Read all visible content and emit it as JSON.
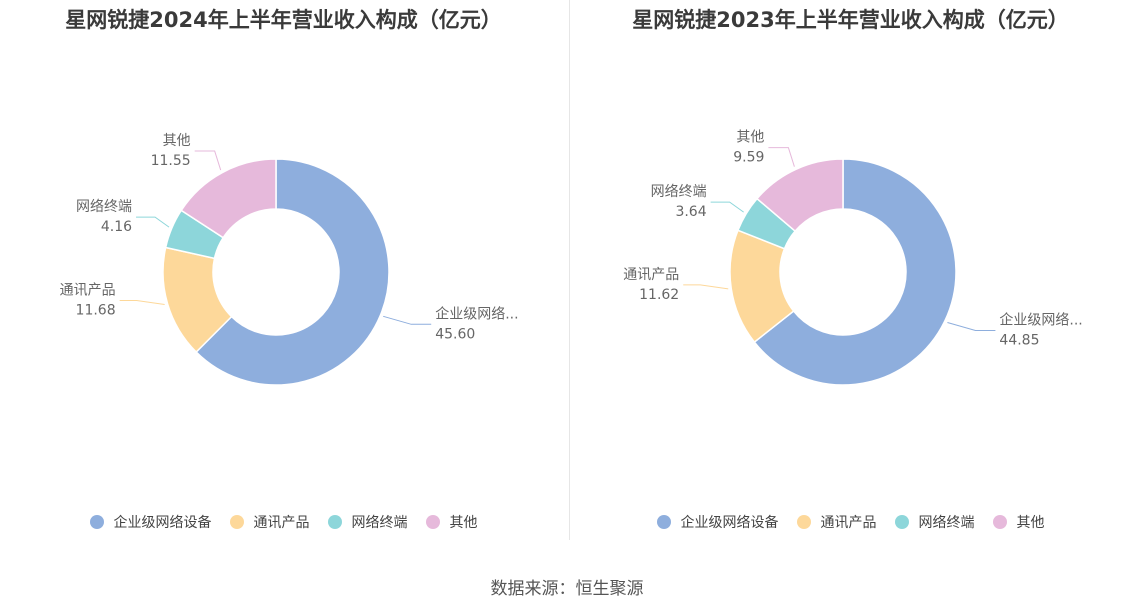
{
  "colors": [
    "#8eaedd",
    "#fdd89a",
    "#8dd6da",
    "#e6b9db"
  ],
  "chart_data": [
    {
      "type": "pie",
      "title": "星网锐捷2024年上半年营业收入构成（亿元）",
      "categories": [
        "企业级网络设备",
        "通讯产品",
        "网络终端",
        "其他"
      ],
      "display_labels": [
        "企业级网络...",
        "通讯产品",
        "网络终端",
        "其他"
      ],
      "values": [
        45.6,
        11.68,
        4.16,
        11.55
      ],
      "value_labels": [
        "45.60",
        "11.68",
        "4.16",
        "11.55"
      ]
    },
    {
      "type": "pie",
      "title": "星网锐捷2023年上半年营业收入构成（亿元）",
      "categories": [
        "企业级网络设备",
        "通讯产品",
        "网络终端",
        "其他"
      ],
      "display_labels": [
        "企业级网络...",
        "通讯产品",
        "网络终端",
        "其他"
      ],
      "values": [
        44.85,
        11.62,
        3.64,
        9.59
      ],
      "value_labels": [
        "44.85",
        "11.62",
        "3.64",
        "9.59"
      ]
    }
  ],
  "legend": [
    "企业级网络设备",
    "通讯产品",
    "网络终端",
    "其他"
  ],
  "source": "数据来源：恒生聚源"
}
